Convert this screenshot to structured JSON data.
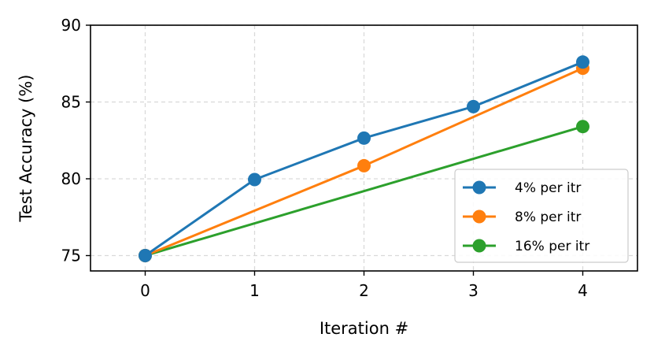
{
  "chart_data": {
    "type": "line",
    "title": "",
    "xlabel": "Iteration #",
    "ylabel": "Test Accuracy (%)",
    "x": [
      0,
      1,
      2,
      3,
      4
    ],
    "xlim": [
      -0.5,
      4.5
    ],
    "ylim": [
      74,
      90
    ],
    "xticks": [
      "0",
      "1",
      "2",
      "3",
      "4"
    ],
    "yticks": [
      "75",
      "80",
      "85",
      "90"
    ],
    "grid": true,
    "grid_style": "dashed",
    "legend_position": "lower-right",
    "series": [
      {
        "name": "4% per itr",
        "color": "#1f77b4",
        "x": [
          0,
          1,
          2,
          3,
          4
        ],
        "values": [
          75.0,
          79.95,
          82.65,
          84.7,
          87.6
        ]
      },
      {
        "name": "8% per itr",
        "color": "#ff7f0e",
        "x": [
          0,
          2,
          4
        ],
        "values": [
          75.0,
          80.85,
          87.2
        ]
      },
      {
        "name": "16% per itr",
        "color": "#2ca02c",
        "x": [
          0,
          4
        ],
        "values": [
          75.0,
          83.4
        ]
      }
    ]
  }
}
